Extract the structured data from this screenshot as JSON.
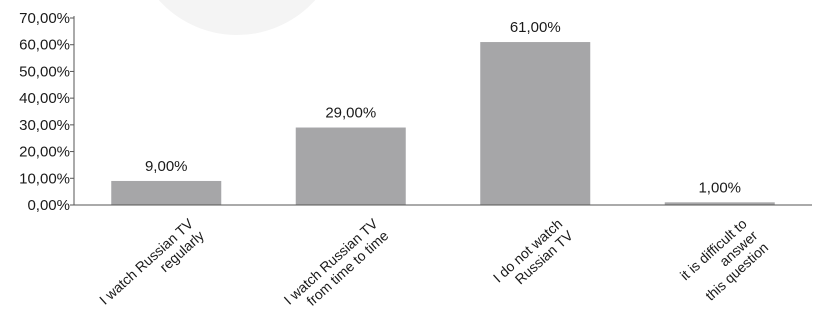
{
  "chart_data": {
    "type": "bar",
    "title": "",
    "xlabel": "",
    "ylabel": "",
    "categories": [
      [
        "I watch Russian TV",
        "regularly"
      ],
      [
        "I watch Russian TV",
        "from time to time"
      ],
      [
        "I do not watch",
        "Russian TV"
      ],
      [
        "it is difficult to",
        "answer",
        "this question"
      ]
    ],
    "values": [
      9.0,
      29.0,
      61.0,
      1.0
    ],
    "value_labels": [
      "9,00%",
      "29,00%",
      "61,00%",
      "1,00%"
    ],
    "ylim": [
      0,
      70
    ],
    "yticks": [
      0,
      10,
      20,
      30,
      40,
      50,
      60,
      70
    ],
    "ytick_labels": [
      "0,00%",
      "10,00%",
      "20,00%",
      "30,00%",
      "40,00%",
      "50,00%",
      "60,00%",
      "70,00%"
    ],
    "grid": false,
    "legend": "none",
    "bar_color": "#a6a6a8"
  }
}
